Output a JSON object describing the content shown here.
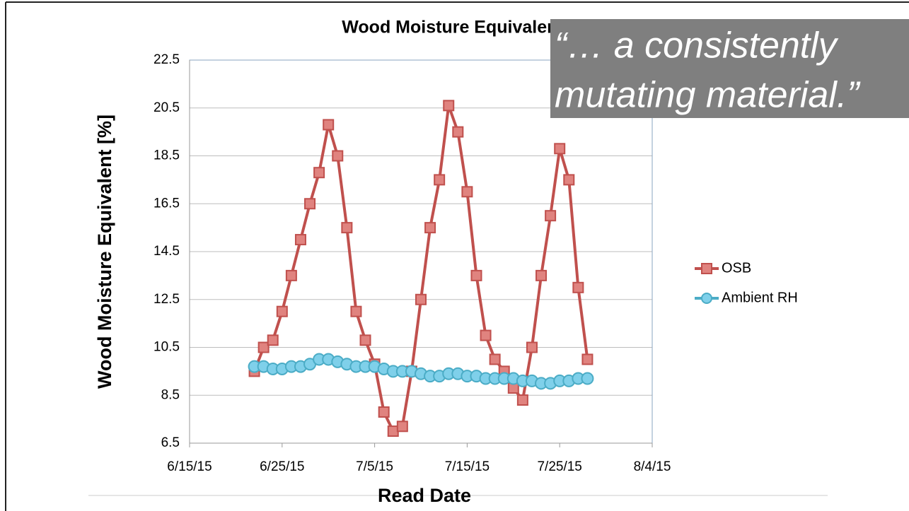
{
  "chart_data": {
    "type": "line",
    "title": "Wood Moisture Equivalent",
    "ylabel": "Wood Moisture Equivalent [%]",
    "xlabel": "Read Date",
    "annotation": [
      "“… a consistently",
      "mutating material.”"
    ],
    "x": [
      "2015-06-22",
      "2015-06-23",
      "2015-06-24",
      "2015-06-25",
      "2015-06-26",
      "2015-06-27",
      "2015-06-28",
      "2015-06-29",
      "2015-06-30",
      "2015-07-01",
      "2015-07-02",
      "2015-07-03",
      "2015-07-04",
      "2015-07-05",
      "2015-07-06",
      "2015-07-07",
      "2015-07-08",
      "2015-07-09",
      "2015-07-10",
      "2015-07-11",
      "2015-07-12",
      "2015-07-13",
      "2015-07-14",
      "2015-07-15",
      "2015-07-16",
      "2015-07-17",
      "2015-07-18",
      "2015-07-19",
      "2015-07-20",
      "2015-07-21",
      "2015-07-22",
      "2015-07-23",
      "2015-07-24",
      "2015-07-25",
      "2015-07-26",
      "2015-07-27",
      "2015-07-28"
    ],
    "series": [
      {
        "name": "OSB",
        "color": "#c0504d",
        "marker": "square",
        "values": [
          9.5,
          10.5,
          10.8,
          12.0,
          13.5,
          15.0,
          16.5,
          17.8,
          19.8,
          18.5,
          15.5,
          12.0,
          10.8,
          9.8,
          7.8,
          7.0,
          7.2,
          9.5,
          12.5,
          15.5,
          17.5,
          20.6,
          19.5,
          17.0,
          13.5,
          11.0,
          10.0,
          9.5,
          8.8,
          8.3,
          10.5,
          13.5,
          16.0,
          18.8,
          17.5,
          13.0,
          10.0
        ]
      },
      {
        "name": "Ambient RH",
        "color": "#4bacc6",
        "marker": "circle",
        "values": [
          9.7,
          9.7,
          9.6,
          9.6,
          9.7,
          9.7,
          9.8,
          10.0,
          10.0,
          9.9,
          9.8,
          9.7,
          9.7,
          9.7,
          9.6,
          9.5,
          9.5,
          9.5,
          9.4,
          9.3,
          9.3,
          9.4,
          9.4,
          9.3,
          9.3,
          9.2,
          9.2,
          9.2,
          9.2,
          9.1,
          9.1,
          9.0,
          9.0,
          9.1,
          9.1,
          9.2,
          9.2
        ]
      }
    ],
    "xlim": [
      "2015-06-15",
      "2015-08-04"
    ],
    "xticks": [
      {
        "value": "2015-06-15",
        "label": "6/15/15"
      },
      {
        "value": "2015-06-25",
        "label": "6/25/15"
      },
      {
        "value": "2015-07-05",
        "label": "7/5/15"
      },
      {
        "value": "2015-07-15",
        "label": "7/15/15"
      },
      {
        "value": "2015-07-25",
        "label": "7/25/15"
      },
      {
        "value": "2015-08-04",
        "label": "8/4/15"
      }
    ],
    "ylim": [
      6.5,
      22.5
    ],
    "yticks": [
      6.5,
      8.5,
      10.5,
      12.5,
      14.5,
      16.5,
      18.5,
      20.5,
      22.5
    ],
    "grid": true,
    "legend": "right"
  }
}
